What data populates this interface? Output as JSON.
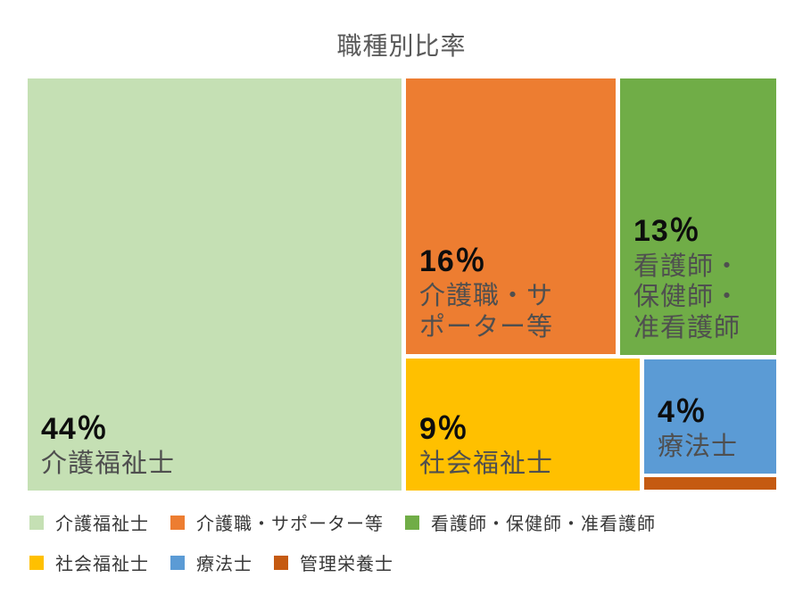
{
  "title": "職種別比率",
  "chart_data": {
    "type": "treemap",
    "title": "職種別比率",
    "categories": [
      "介護福祉士",
      "介護職・サポーター等",
      "看護師・保健師・准看護師",
      "社会福祉士",
      "療法士",
      "管理栄養士"
    ],
    "values": [
      44,
      16,
      13,
      9,
      4,
      0.5
    ],
    "unit": "%",
    "value_labels": [
      "44％",
      "16％",
      "13％",
      "9％",
      "4％",
      ""
    ],
    "colors": [
      "#c5e0b4",
      "#ed7d31",
      "#70ad47",
      "#ffc000",
      "#5b9bd5",
      "#c55a11"
    ],
    "legend_position": "bottom",
    "notes": "value for 管理栄養士 not labeled on chart; estimated from cell area"
  },
  "blocks": [
    {
      "pct": "44％",
      "label": "介護福祉士"
    },
    {
      "pct": "16％",
      "label": "介護職・サ\nポーター等"
    },
    {
      "pct": "13％",
      "label": "看護師・\n保健師・\n准看護師"
    },
    {
      "pct": "9％",
      "label": "社会福祉士"
    },
    {
      "pct": "4％",
      "label": "療法士"
    },
    {
      "pct": "",
      "label": ""
    }
  ],
  "legend": {
    "rows": [
      [
        {
          "label": "介護福祉士"
        },
        {
          "label": "介護職・サポーター等"
        },
        {
          "label": "看護師・保健師・准看護師"
        }
      ],
      [
        {
          "label": "社会福祉士"
        },
        {
          "label": "療法士"
        },
        {
          "label": "管理栄養士"
        }
      ]
    ]
  },
  "colors": {
    "title_text": "#595959",
    "percent_text": "#0d0d0d",
    "category_text": "#4f4f4f",
    "legend_text": "#383838",
    "background": "#ffffff"
  }
}
